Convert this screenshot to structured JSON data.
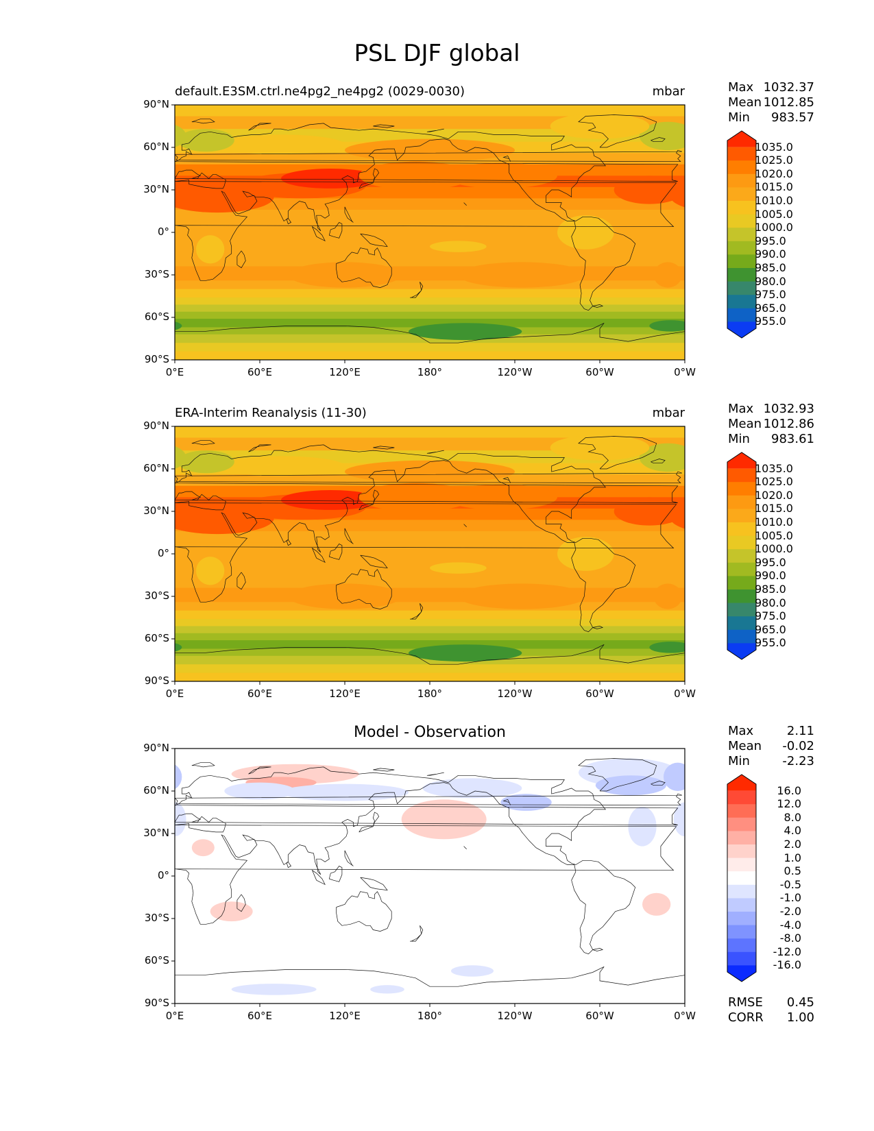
{
  "figure_title": "PSL DJF global",
  "panels": [
    {
      "id": "test",
      "title_left": "default.E3SM.ctrl.ne4pg2_ne4pg2 (0029-0030)",
      "title_right": "mbar",
      "title_center": "",
      "stats": [
        {
          "label": "Max",
          "value": "1032.37"
        },
        {
          "label": "Mean",
          "value": "1012.85"
        },
        {
          "label": "Min",
          "value": "983.57"
        }
      ],
      "extra_stats": [],
      "colorbar_levels": [
        "1035.0",
        "1025.0",
        "1020.0",
        "1015.0",
        "1010.0",
        "1005.0",
        "1000.0",
        "995.0",
        "990.0",
        "985.0",
        "980.0",
        "975.0",
        "965.0",
        "955.0"
      ],
      "colorbar_colors": [
        "#ff2a00",
        "#ff5a00",
        "#ff7e00",
        "#fd9a12",
        "#fba91a",
        "#f7c21f",
        "#e9c923",
        "#c5c42a",
        "#a1ba21",
        "#76aa1b",
        "#3f9330",
        "#37876b",
        "#197793",
        "#0e62c6",
        "#0b3cf3"
      ]
    },
    {
      "id": "reference",
      "title_left": "ERA-Interim Reanalysis (11-30)",
      "title_right": "mbar",
      "title_center": "",
      "stats": [
        {
          "label": "Max",
          "value": "1032.93"
        },
        {
          "label": "Mean",
          "value": "1012.86"
        },
        {
          "label": "Min",
          "value": "983.61"
        }
      ],
      "extra_stats": [],
      "colorbar_levels": [
        "1035.0",
        "1025.0",
        "1020.0",
        "1015.0",
        "1010.0",
        "1005.0",
        "1000.0",
        "995.0",
        "990.0",
        "985.0",
        "980.0",
        "975.0",
        "965.0",
        "955.0"
      ],
      "colorbar_colors": [
        "#ff2a00",
        "#ff5a00",
        "#ff7e00",
        "#fd9a12",
        "#fba91a",
        "#f7c21f",
        "#e9c923",
        "#c5c42a",
        "#a1ba21",
        "#76aa1b",
        "#3f9330",
        "#37876b",
        "#197793",
        "#0e62c6",
        "#0b3cf3"
      ]
    },
    {
      "id": "diff",
      "title_left": "",
      "title_right": "",
      "title_center": "Model - Observation",
      "stats": [
        {
          "label": "Max",
          "value": "2.11"
        },
        {
          "label": "Mean",
          "value": "-0.02"
        },
        {
          "label": "Min",
          "value": "-2.23"
        }
      ],
      "extra_stats": [
        {
          "label": "RMSE",
          "value": "0.45"
        },
        {
          "label": "CORR",
          "value": "1.00"
        }
      ],
      "colorbar_levels": [
        "16.0",
        "12.0",
        "8.0",
        "4.0",
        "2.0",
        "1.0",
        "0.5",
        "-0.5",
        "-1.0",
        "-2.0",
        "-4.0",
        "-8.0",
        "-12.0",
        "-16.0"
      ],
      "colorbar_colors": [
        "#ff2a00",
        "#ff4a35",
        "#ff6d55",
        "#ff8f80",
        "#ffb0a5",
        "#ffd2cb",
        "#ffecea",
        "#ffffff",
        "#dfe5ff",
        "#c0cbff",
        "#a0afff",
        "#7f93ff",
        "#5d74ff",
        "#3a53ff",
        "#0b2bff"
      ]
    }
  ],
  "axes": {
    "lat_ticks": [
      "90°N",
      "60°N",
      "30°N",
      "0°",
      "30°S",
      "60°S",
      "90°S"
    ],
    "lon_ticks": [
      "0°E",
      "60°E",
      "120°E",
      "180°",
      "120°W",
      "60°W",
      "0°W"
    ]
  },
  "chart_data": [
    {
      "type": "heatmap",
      "title": "default.E3SM.ctrl.ne4pg2_ne4pg2 (0029-0030)",
      "units": "mbar",
      "x": [
        0,
        60,
        120,
        180,
        240,
        300,
        360
      ],
      "y": [
        90,
        60,
        30,
        0,
        -30,
        -60,
        -90
      ],
      "xlim": [
        0,
        360
      ],
      "ylim": [
        -90,
        90
      ],
      "approx_zonal_profile": [
        {
          "lat": 80,
          "value": 1012
        },
        {
          "lat": 60,
          "value": 1008
        },
        {
          "lat": 40,
          "value": 1021
        },
        {
          "lat": 20,
          "value": 1015
        },
        {
          "lat": 0,
          "value": 1011
        },
        {
          "lat": -30,
          "value": 1016
        },
        {
          "lat": -50,
          "value": 1005
        },
        {
          "lat": -65,
          "value": 990
        },
        {
          "lat": -85,
          "value": 1007
        }
      ],
      "max": 1032.37,
      "mean": 1012.85,
      "min": 983.57
    },
    {
      "type": "heatmap",
      "title": "ERA-Interim Reanalysis (11-30)",
      "units": "mbar",
      "x": [
        0,
        60,
        120,
        180,
        240,
        300,
        360
      ],
      "y": [
        90,
        60,
        30,
        0,
        -30,
        -60,
        -90
      ],
      "xlim": [
        0,
        360
      ],
      "ylim": [
        -90,
        90
      ],
      "approx_zonal_profile": [
        {
          "lat": 80,
          "value": 1012
        },
        {
          "lat": 60,
          "value": 1009
        },
        {
          "lat": 40,
          "value": 1021
        },
        {
          "lat": 20,
          "value": 1015
        },
        {
          "lat": 0,
          "value": 1011
        },
        {
          "lat": -30,
          "value": 1016
        },
        {
          "lat": -50,
          "value": 1005
        },
        {
          "lat": -65,
          "value": 990
        },
        {
          "lat": -85,
          "value": 1007
        }
      ],
      "max": 1032.93,
      "mean": 1012.86,
      "min": 983.61
    },
    {
      "type": "heatmap",
      "title": "Model - Observation",
      "x": [
        0,
        60,
        120,
        180,
        240,
        300,
        360
      ],
      "y": [
        90,
        60,
        30,
        0,
        -30,
        -60,
        -90
      ],
      "xlim": [
        0,
        360
      ],
      "ylim": [
        -90,
        90
      ],
      "max": 2.11,
      "mean": -0.02,
      "min": -2.23,
      "rmse": 0.45,
      "corr": 1.0
    }
  ]
}
